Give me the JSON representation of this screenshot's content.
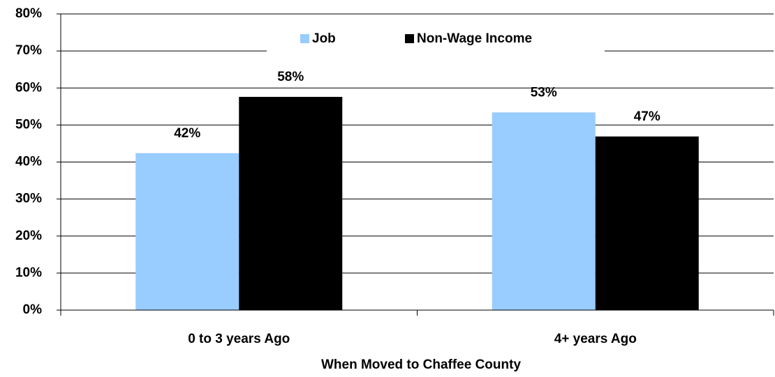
{
  "chart_data": {
    "type": "bar",
    "x_label": "When Moved to Chaffee County",
    "categories": [
      "0 to 3 years Ago",
      "4+ years Ago"
    ],
    "series": [
      {
        "name": "Job",
        "color": "#99ccff",
        "values": [
          42.4,
          53.4
        ],
        "value_labels": [
          "42%",
          "53%"
        ]
      },
      {
        "name": "Non-Wage Income",
        "color": "#000000",
        "values": [
          57.6,
          46.9
        ],
        "value_labels": [
          "58%",
          "47%"
        ]
      }
    ],
    "ylim": [
      0,
      80
    ],
    "yticks": [
      {
        "value": 0,
        "label": "0%"
      },
      {
        "value": 10,
        "label": "10%"
      },
      {
        "value": 20,
        "label": "20%"
      },
      {
        "value": 30,
        "label": "30%"
      },
      {
        "value": 40,
        "label": "40%"
      },
      {
        "value": 50,
        "label": "50%"
      },
      {
        "value": 60,
        "label": "60%"
      },
      {
        "value": 70,
        "label": "70%"
      },
      {
        "value": 80,
        "label": "80%"
      }
    ],
    "grid": true,
    "legend": "top"
  }
}
